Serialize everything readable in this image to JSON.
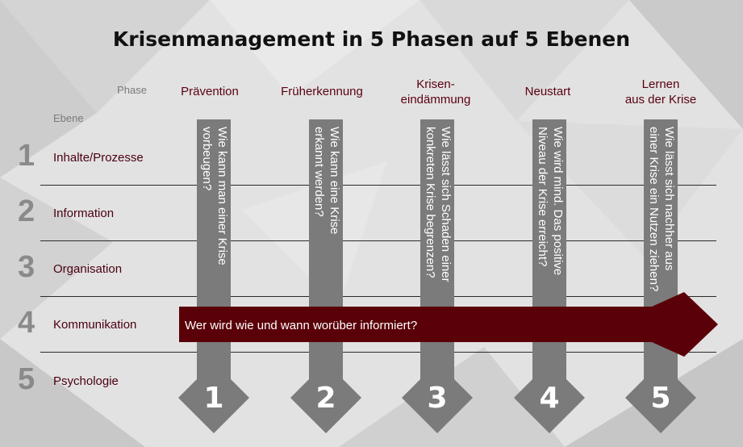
{
  "title": "Krisenmanagement in 5 Phasen auf 5 Ebenen",
  "phase_header": "Phase",
  "level_header": "Ebene",
  "phases": [
    {
      "label_lines": [
        "Prävention"
      ],
      "question_lines": [
        "Wie kann man einer Krise",
        "vorbeugen?"
      ],
      "number": "1"
    },
    {
      "label_lines": [
        "Früherkennung"
      ],
      "question_lines": [
        "Wie kann eine Krise",
        "erkannt werden?"
      ],
      "number": "2"
    },
    {
      "label_lines": [
        "Krisen-",
        "eindämmung"
      ],
      "question_lines": [
        "Wie lässt sich Schaden einer",
        "konkreten Krise begrenzen?"
      ],
      "number": "3"
    },
    {
      "label_lines": [
        "Neustart"
      ],
      "question_lines": [
        "Wie wird  mind. Das positive",
        "Niveau der Krise erreicht?"
      ],
      "number": "4"
    },
    {
      "label_lines": [
        "Lernen",
        "aus der Krise"
      ],
      "question_lines": [
        "Wie lässt sich nachher aus",
        "einer Krise ein Nutzen ziehen?"
      ],
      "number": "5"
    }
  ],
  "levels": [
    {
      "number": "1",
      "label": "Inhalte/Prozesse"
    },
    {
      "number": "2",
      "label": "Information"
    },
    {
      "number": "3",
      "label": "Organisation"
    },
    {
      "number": "4",
      "label": "Kommunikation"
    },
    {
      "number": "5",
      "label": "Psychologie"
    }
  ],
  "communication_text": "Wer wird wie und wann worüber informiert?",
  "colors": {
    "accent": "#5a0008",
    "bar_gray": "#7b7b7b",
    "level_number_gray": "#8a8a8a",
    "label_red": "#5a0010"
  }
}
